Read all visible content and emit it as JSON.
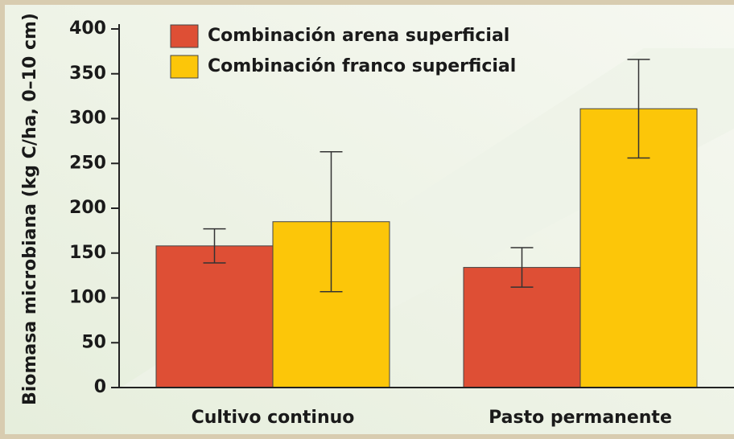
{
  "chart_data": {
    "type": "bar",
    "ylabel": "Biomasa microbiana (kg C/ha, 0–10 cm)",
    "categories": [
      "Cultivo continuo",
      "Pasto permanente"
    ],
    "series": [
      {
        "name": "Combinación arena superficial",
        "color": "#de4f35",
        "values": [
          158,
          134
        ],
        "errors": [
          19,
          22
        ]
      },
      {
        "name": "Combinación franco superficial",
        "color": "#fcc609",
        "values": [
          185,
          311
        ],
        "errors": [
          78,
          55
        ]
      }
    ],
    "ylim": [
      0,
      400
    ],
    "yticks": [
      0,
      50,
      100,
      150,
      200,
      250,
      300,
      350,
      400
    ],
    "legend": "upper left"
  }
}
